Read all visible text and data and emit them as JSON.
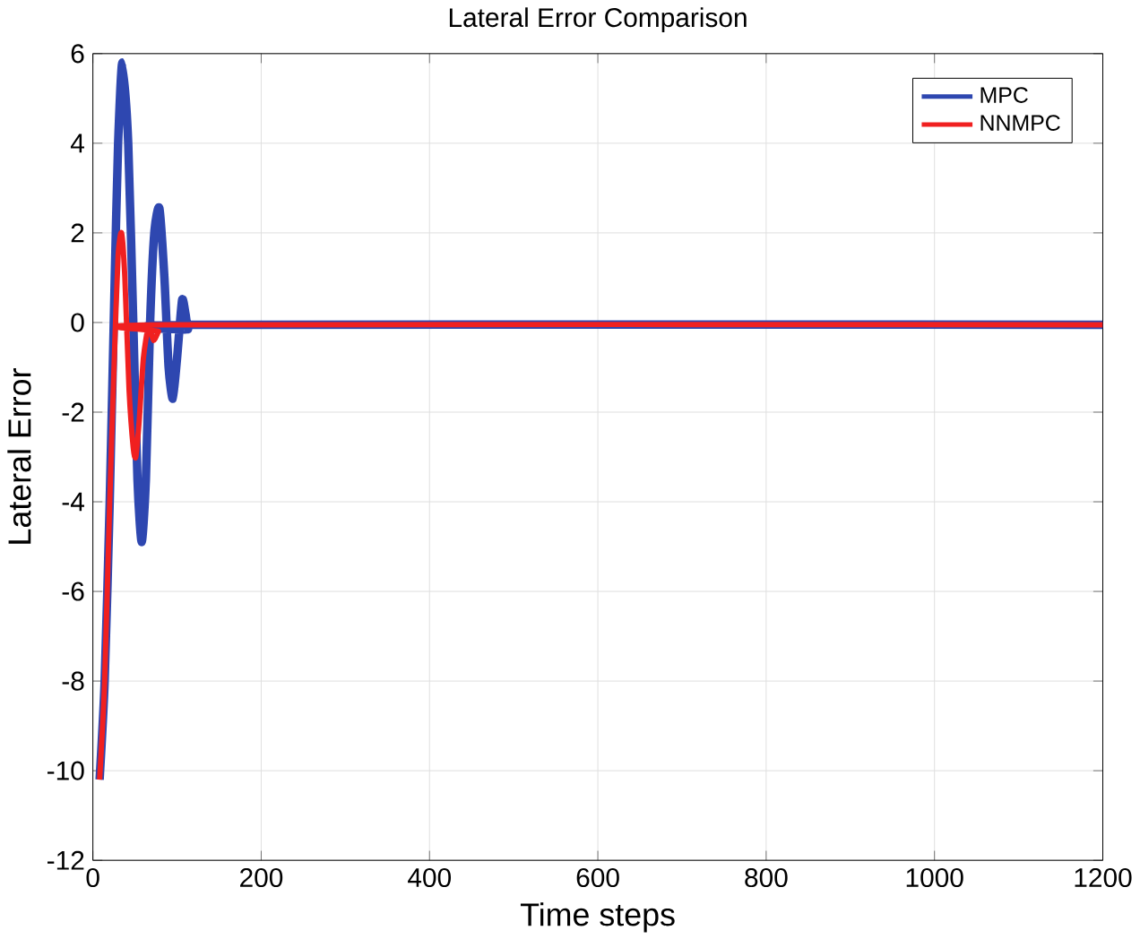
{
  "chart_data": {
    "type": "line",
    "title": "Lateral Error Comparison",
    "xlabel": "Time steps",
    "ylabel": "Lateral Error",
    "xlim": [
      0,
      1200
    ],
    "ylim": [
      -12,
      6
    ],
    "xticks": [
      0,
      200,
      400,
      600,
      800,
      1000,
      1200
    ],
    "yticks": [
      -12,
      -10,
      -8,
      -6,
      -4,
      -2,
      0,
      2,
      4,
      6
    ],
    "grid": true,
    "legend": "top right",
    "series": [
      {
        "name": "MPC",
        "color": "#2e47b0",
        "x": [
          8,
          14,
          20,
          26,
          30,
          35,
          42,
          48,
          53,
          58,
          63,
          68,
          73,
          79,
          85,
          90,
          95,
          100,
          106,
          110,
          113,
          118,
          1200
        ],
        "values": [
          -10.2,
          -8,
          -4,
          1,
          4,
          5.8,
          4,
          0,
          -3.5,
          -4.9,
          -3.5,
          0,
          2,
          2.55,
          1,
          -1,
          -1.7,
          -0.8,
          0.5,
          0.2,
          -0.15,
          -0.05,
          -0.05
        ]
      },
      {
        "name": "NNMPC",
        "color": "#f02020",
        "x": [
          8,
          14,
          20,
          26,
          30,
          34,
          38,
          43,
          48,
          51,
          55,
          60,
          66,
          72,
          78,
          85,
          1200
        ],
        "values": [
          -10.2,
          -8,
          -4,
          -0.5,
          1.5,
          2,
          1,
          -1.5,
          -2.8,
          -3,
          -2.2,
          -0.8,
          -0.1,
          -0.4,
          -0.2,
          -0.05,
          -0.05
        ]
      }
    ]
  }
}
